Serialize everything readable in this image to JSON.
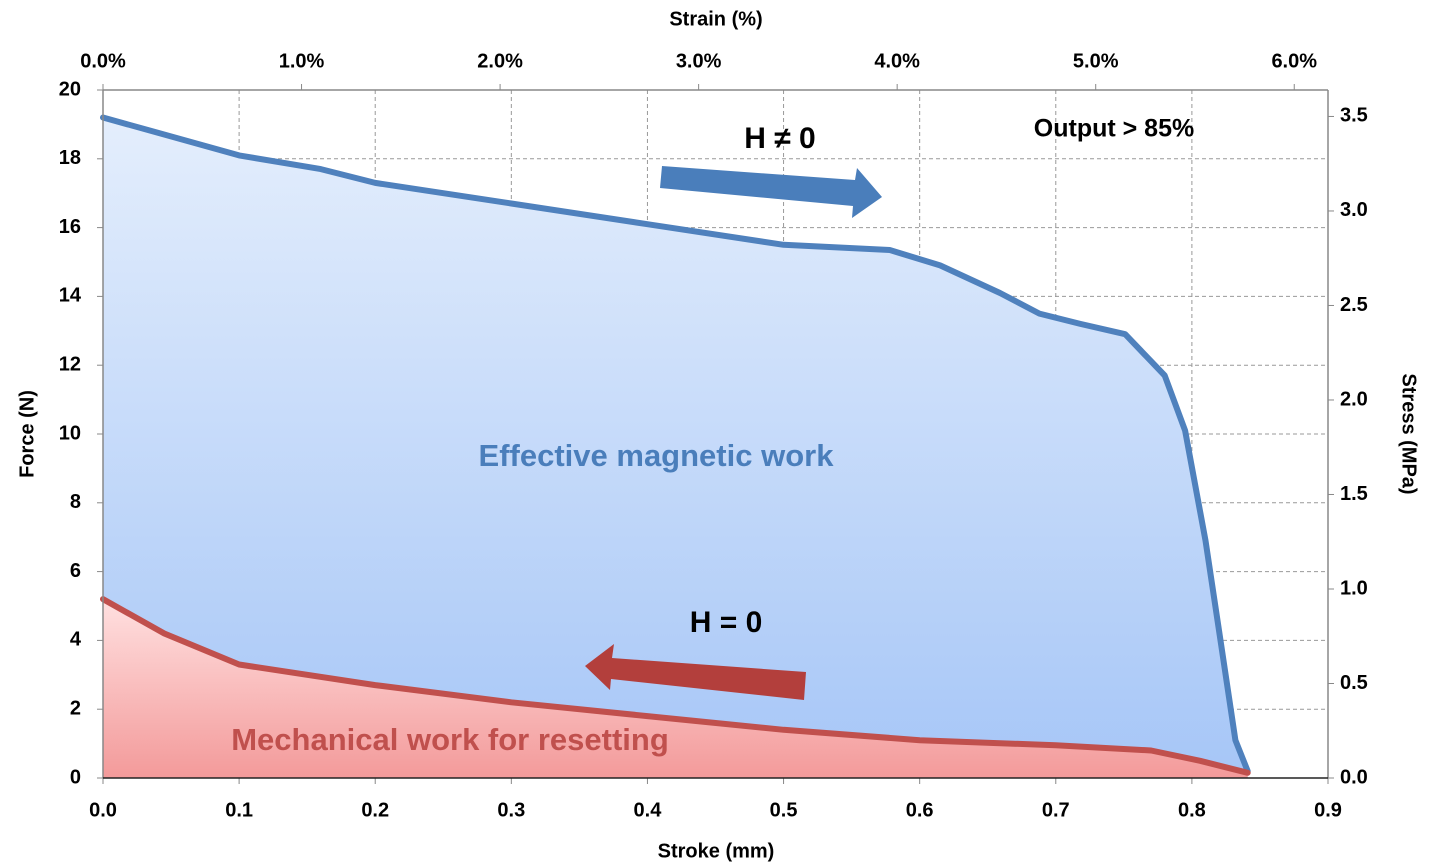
{
  "chart_data": {
    "type": "area",
    "xlabel": "Stroke (mm)",
    "ylabel": "Force (N)",
    "x2label": "Strain (%)",
    "y2label": "Stress (MPa)",
    "xlim": [
      0,
      0.9
    ],
    "xticks": [
      {
        "value": 0,
        "label": "0.0"
      },
      0.1,
      0.2,
      0.3,
      0.4,
      0.5,
      0.6,
      0.7,
      0.8,
      0.9
    ],
    "x2lim": [
      0,
      6.17
    ],
    "x2ticks": [
      {
        "value": 0,
        "label": "0.0%"
      },
      {
        "value": 1,
        "label": "1.0%"
      },
      {
        "value": 2,
        "label": "2.0%"
      },
      {
        "value": 3,
        "label": "3.0%"
      },
      {
        "value": 4,
        "label": "4.0%"
      },
      {
        "value": 5,
        "label": "5.0%"
      },
      {
        "value": 6,
        "label": "6.0%"
      }
    ],
    "ylim": [
      0,
      20
    ],
    "yticks": [
      0,
      2,
      4,
      6,
      8,
      10,
      12,
      14,
      16,
      18,
      20
    ],
    "y2lim": [
      0,
      3.64
    ],
    "y2ticks": [
      {
        "value": 0,
        "label": "0.0"
      },
      0.5,
      {
        "value": 1,
        "label": "1.0"
      },
      1.5,
      {
        "value": 2,
        "label": "2.0"
      },
      2.5,
      {
        "value": 3,
        "label": "3.0"
      },
      3.5
    ],
    "grid": true,
    "series": [
      {
        "name": "H ≠ 0",
        "color": "#4f81bd",
        "x": [
          0,
          0.1,
          0.16,
          0.2,
          0.3,
          0.4,
          0.5,
          0.578,
          0.615,
          0.659,
          0.688,
          0.718,
          0.751,
          0.78,
          0.795,
          0.81,
          0.821,
          0.832,
          0.841
        ],
        "values": [
          19.2,
          18.1,
          17.7,
          17.3,
          16.7,
          16.1,
          15.5,
          15.35,
          14.9,
          14.1,
          13.5,
          13.2,
          12.9,
          11.7,
          10.1,
          6.9,
          4.0,
          1.1,
          0.2
        ]
      },
      {
        "name": "H = 0",
        "color": "#c0504d",
        "x": [
          0,
          0.045,
          0.1,
          0.2,
          0.3,
          0.4,
          0.5,
          0.6,
          0.7,
          0.77,
          0.806,
          0.841
        ],
        "values": [
          5.2,
          4.2,
          3.3,
          2.7,
          2.2,
          1.8,
          1.4,
          1.1,
          0.95,
          0.8,
          0.5,
          0.15
        ]
      }
    ],
    "annotations": [
      "Effective magnetic work",
      "Mechanical work for resetting",
      "Output > 85%"
    ]
  }
}
